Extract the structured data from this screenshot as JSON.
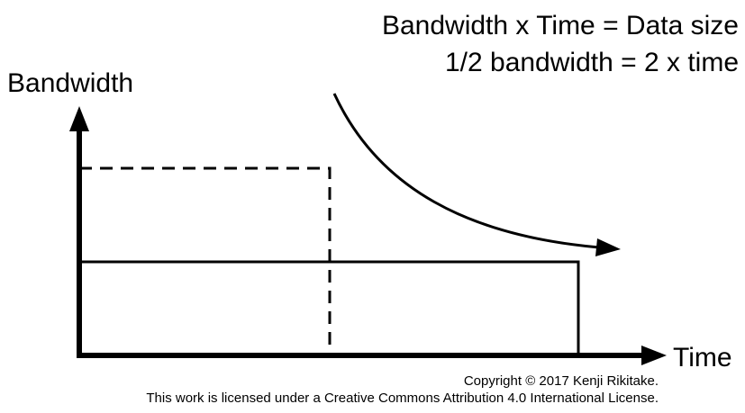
{
  "formula": {
    "line1": "Bandwidth x Time = Data size",
    "line2": "1/2 bandwidth = 2 x time"
  },
  "axes": {
    "y_label": "Bandwidth",
    "x_label": "Time"
  },
  "footer": {
    "copyright": "Copyright © 2017 Kenji Rikitake.",
    "license": "This work is licensed under a Creative Commons Attribution 4.0 International License."
  },
  "colors": {
    "ink": "#000000",
    "background": "#ffffff"
  }
}
